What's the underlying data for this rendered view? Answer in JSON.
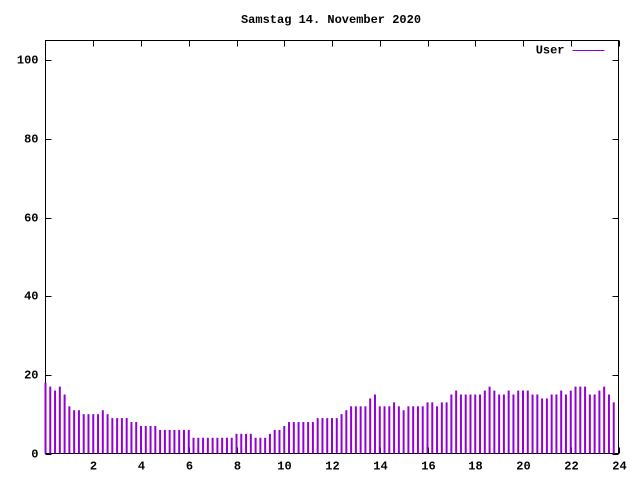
{
  "chart_data": {
    "type": "impulse",
    "title": "Samstag 14. November 2020",
    "x": [
      0,
      0.2,
      0.4,
      0.6,
      0.8,
      1,
      1.2,
      1.4,
      1.6,
      1.8,
      2,
      2.2,
      2.4,
      2.6,
      2.8,
      3,
      3.2,
      3.4,
      3.6,
      3.8,
      4,
      4.2,
      4.4,
      4.6,
      4.8,
      5,
      5.2,
      5.4,
      5.6,
      5.8,
      6,
      6.2,
      6.4,
      6.6,
      6.8,
      7,
      7.2,
      7.4,
      7.6,
      7.8,
      8,
      8.2,
      8.4,
      8.6,
      8.8,
      9,
      9.2,
      9.4,
      9.6,
      9.8,
      10,
      10.2,
      10.4,
      10.6,
      10.8,
      11,
      11.2,
      11.4,
      11.6,
      11.8,
      12,
      12.2,
      12.4,
      12.6,
      12.8,
      13,
      13.2,
      13.4,
      13.6,
      13.8,
      14,
      14.2,
      14.4,
      14.6,
      14.8,
      15,
      15.2,
      15.4,
      15.6,
      15.8,
      16,
      16.2,
      16.4,
      16.6,
      16.8,
      17,
      17.2,
      17.4,
      17.6,
      17.8,
      18,
      18.2,
      18.4,
      18.6,
      18.8,
      19,
      19.2,
      19.4,
      19.6,
      19.8,
      20,
      20.2,
      20.4,
      20.6,
      20.8,
      21,
      21.2,
      21.4,
      21.6,
      21.8,
      22,
      22.2,
      22.4,
      22.6,
      22.8,
      23,
      23.2,
      23.4,
      23.6,
      23.8
    ],
    "series": [
      {
        "name": "User",
        "color": "#9400d3",
        "values": [
          18,
          17,
          16,
          17,
          15,
          12,
          11,
          11,
          10,
          10,
          10,
          10,
          11,
          10,
          9,
          9,
          9,
          9,
          8,
          8,
          7,
          7,
          7,
          7,
          6,
          6,
          6,
          6,
          6,
          6,
          6,
          4,
          4,
          4,
          4,
          4,
          4,
          4,
          4,
          4,
          5,
          5,
          5,
          5,
          4,
          4,
          4,
          5,
          6,
          6,
          7,
          8,
          8,
          8,
          8,
          8,
          8,
          9,
          9,
          9,
          9,
          9,
          10,
          11,
          12,
          12,
          12,
          12,
          14,
          15,
          12,
          12,
          12,
          13,
          12,
          11,
          12,
          12,
          12,
          12,
          13,
          13,
          12,
          13,
          13,
          15,
          16,
          15,
          15,
          15,
          15,
          15,
          16,
          17,
          16,
          15,
          15,
          16,
          15,
          16,
          16,
          16,
          15,
          15,
          14,
          14,
          15,
          15,
          16,
          15,
          16,
          17,
          17,
          17,
          15,
          15,
          16,
          17,
          15,
          13
        ]
      }
    ],
    "xlim": [
      0,
      24
    ],
    "xticks": [
      2,
      4,
      6,
      8,
      10,
      12,
      14,
      16,
      18,
      20,
      22,
      24
    ],
    "ylim": [
      0,
      105
    ],
    "yticks": [
      0,
      20,
      40,
      60,
      80,
      100
    ],
    "legend": "top-right"
  }
}
